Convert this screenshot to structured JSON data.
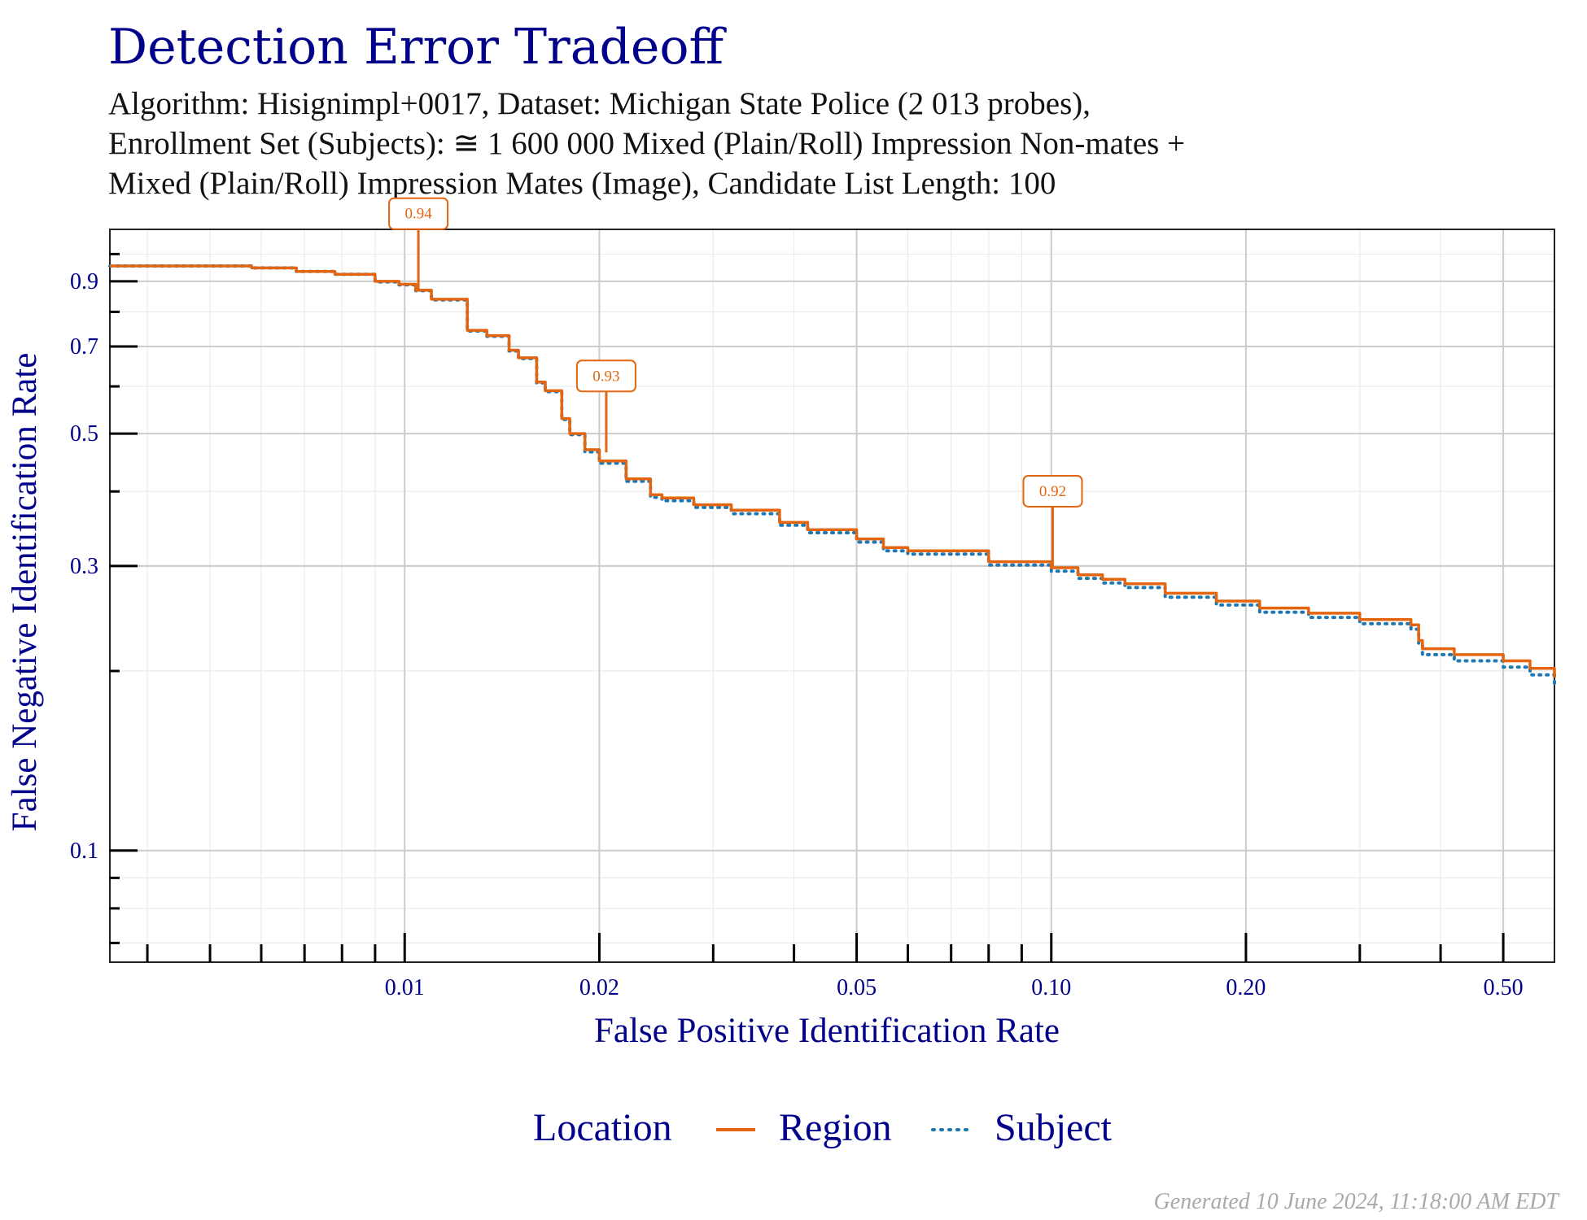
{
  "title": "Detection Error Tradeoff",
  "subtitle_lines": [
    "Algorithm: Hisignimpl+0017, Dataset: Michigan State Police (2 013 probes),",
    "Enrollment Set (Subjects): ≅ 1 600 000 Mixed (Plain/Roll) Impression Non-mates +",
    "Mixed (Plain/Roll) Impression Mates (Image), Candidate List Length: 100"
  ],
  "footer": "Generated 10 June 2024, 11:18:00 AM EDT",
  "colors": {
    "region": "#e3650f",
    "subject": "#1f77b4",
    "text": "#00008b",
    "grid": "#cccccc"
  },
  "chart_data": {
    "type": "line",
    "title": "Detection Error Tradeoff",
    "xlabel": "False Positive Identification Rate",
    "ylabel": "False Negative Identification Rate",
    "x_scale": "log",
    "y_scale": "log",
    "xlim": [
      0.0035,
      0.6
    ],
    "ylim": [
      0.065,
      1.1
    ],
    "x_ticks": [
      {
        "value": 0.01,
        "label": "0.01"
      },
      {
        "value": 0.02,
        "label": "0.02"
      },
      {
        "value": 0.05,
        "label": "0.05"
      },
      {
        "value": 0.1,
        "label": "0.10"
      },
      {
        "value": 0.2,
        "label": "0.20"
      },
      {
        "value": 0.5,
        "label": "0.50"
      }
    ],
    "y_ticks": [
      {
        "value": 0.1,
        "label": "0.1"
      },
      {
        "value": 0.3,
        "label": "0.3"
      },
      {
        "value": 0.5,
        "label": "0.5"
      },
      {
        "value": 0.7,
        "label": "0.7"
      },
      {
        "value": 0.9,
        "label": "0.9"
      }
    ],
    "legend": {
      "title": "Location",
      "position": "bottom"
    },
    "series": [
      {
        "name": "Region",
        "style": "solid",
        "x": [
          0.0035,
          0.0058,
          0.0068,
          0.0078,
          0.009,
          0.0098,
          0.0104,
          0.011,
          0.0125,
          0.0134,
          0.0145,
          0.015,
          0.016,
          0.0165,
          0.0175,
          0.018,
          0.019,
          0.02,
          0.022,
          0.024,
          0.025,
          0.028,
          0.032,
          0.038,
          0.042,
          0.05,
          0.055,
          0.06,
          0.08,
          0.1,
          0.11,
          0.12,
          0.13,
          0.15,
          0.18,
          0.21,
          0.25,
          0.3,
          0.36,
          0.37,
          0.375,
          0.42,
          0.5,
          0.55,
          0.6
        ],
        "y": [
          0.955,
          0.948,
          0.935,
          0.925,
          0.9,
          0.89,
          0.87,
          0.84,
          0.745,
          0.73,
          0.69,
          0.67,
          0.61,
          0.59,
          0.53,
          0.5,
          0.47,
          0.45,
          0.42,
          0.395,
          0.39,
          0.38,
          0.372,
          0.355,
          0.345,
          0.333,
          0.322,
          0.318,
          0.305,
          0.298,
          0.29,
          0.285,
          0.28,
          0.27,
          0.262,
          0.255,
          0.25,
          0.244,
          0.239,
          0.225,
          0.218,
          0.213,
          0.208,
          0.202,
          0.195
        ]
      },
      {
        "name": "Subject",
        "style": "dotted",
        "x": [
          0.0035,
          0.0058,
          0.0068,
          0.0078,
          0.009,
          0.0098,
          0.0104,
          0.011,
          0.0125,
          0.0134,
          0.0145,
          0.015,
          0.016,
          0.0165,
          0.0175,
          0.018,
          0.019,
          0.02,
          0.022,
          0.024,
          0.025,
          0.028,
          0.032,
          0.038,
          0.042,
          0.05,
          0.055,
          0.06,
          0.08,
          0.1,
          0.11,
          0.12,
          0.13,
          0.15,
          0.18,
          0.21,
          0.25,
          0.3,
          0.36,
          0.37,
          0.375,
          0.42,
          0.5,
          0.55,
          0.6
        ],
        "y": [
          0.955,
          0.948,
          0.935,
          0.925,
          0.898,
          0.888,
          0.868,
          0.838,
          0.743,
          0.728,
          0.688,
          0.668,
          0.608,
          0.588,
          0.528,
          0.498,
          0.466,
          0.446,
          0.416,
          0.391,
          0.386,
          0.376,
          0.367,
          0.351,
          0.341,
          0.329,
          0.318,
          0.314,
          0.301,
          0.294,
          0.286,
          0.281,
          0.276,
          0.266,
          0.258,
          0.251,
          0.246,
          0.24,
          0.235,
          0.221,
          0.213,
          0.208,
          0.203,
          0.197,
          0.19
        ]
      }
    ],
    "annotations": [
      {
        "x": 0.0105,
        "y": 0.87,
        "label": "0.94",
        "series": "Region"
      },
      {
        "x": 0.0205,
        "y": 0.465,
        "label": "0.93",
        "series": "Region"
      },
      {
        "x": 0.1005,
        "y": 0.298,
        "label": "0.92",
        "series": "Region"
      }
    ]
  }
}
